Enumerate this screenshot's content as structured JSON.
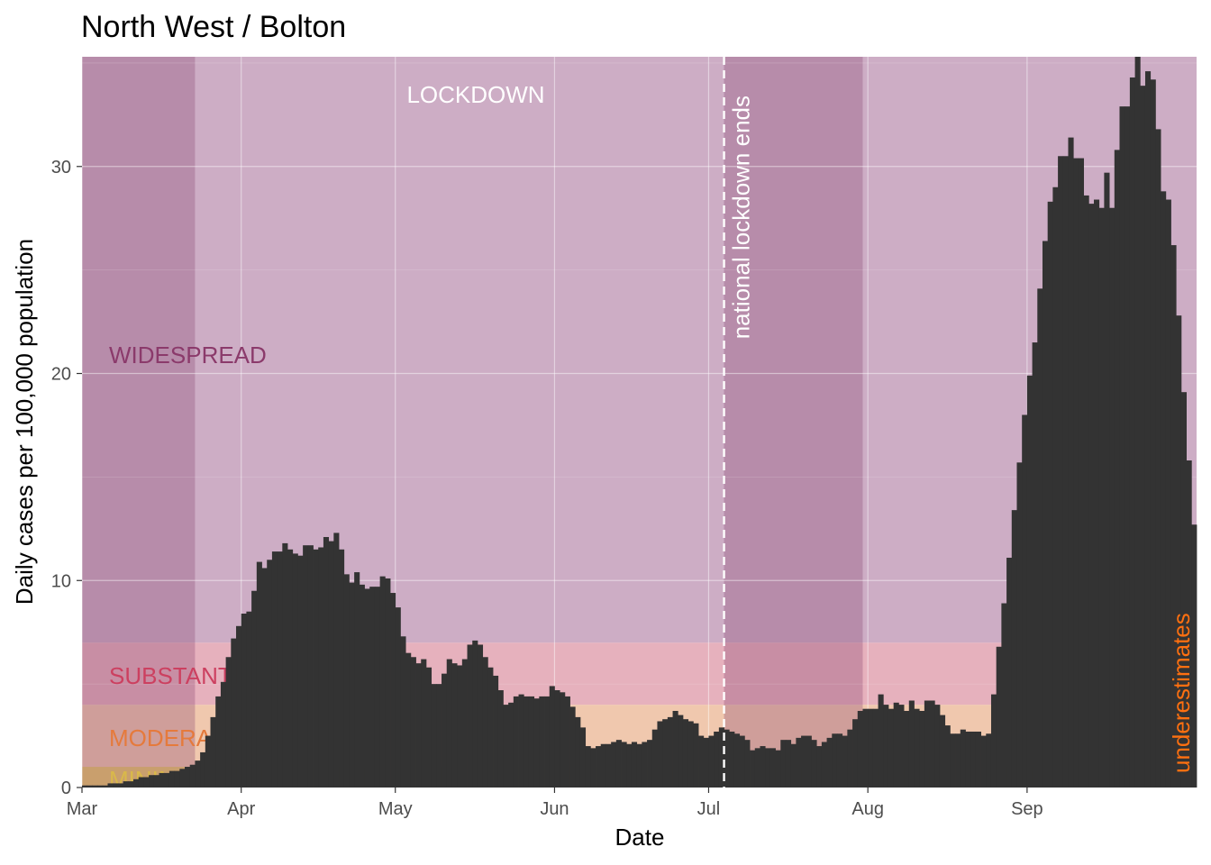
{
  "title": "North West / Bolton",
  "chart_data": {
    "type": "bar",
    "xlabel": "Date",
    "ylabel": "Daily cases per 100,000 population",
    "x_start": "2020-03-01",
    "x_end": "2020-09-28",
    "ylim": [
      0,
      35.3
    ],
    "x_ticks": [
      {
        "date": "2020-03-01",
        "label": "Mar"
      },
      {
        "date": "2020-04-01",
        "label": "Apr"
      },
      {
        "date": "2020-05-01",
        "label": "May"
      },
      {
        "date": "2020-06-01",
        "label": "Jun"
      },
      {
        "date": "2020-07-01",
        "label": "Jul"
      },
      {
        "date": "2020-08-01",
        "label": "Aug"
      },
      {
        "date": "2020-09-01",
        "label": "Sep"
      }
    ],
    "y_ticks": [
      0,
      10,
      20,
      30
    ],
    "grid": true,
    "zones": [
      {
        "name": "MINIMAL",
        "label": "MINIMAL",
        "ymin": 0,
        "ymax": 1,
        "color": "#e8c96a"
      },
      {
        "name": "MODERATE",
        "label": "MODERATE",
        "ymin": 1,
        "ymax": 4,
        "color": "#f0c8ae"
      },
      {
        "name": "SUBSTANTIAL",
        "label": "SUBSTANTIAL",
        "ymin": 4,
        "ymax": 7,
        "color": "#e6b1bd"
      },
      {
        "name": "WIDESPREAD",
        "label": "WIDESPREAD",
        "ymin": 7,
        "ymax": 35.3,
        "color": "#cdadc5"
      }
    ],
    "zone_label_colors": {
      "MINIMAL": "#d9b84a",
      "MODERATE": "#e57a3c",
      "SUBSTANTIAL": "#cc4060",
      "WIDESPREAD": "#8b3a6b"
    },
    "shaded_periods": [
      {
        "start": "2020-03-01",
        "end": "2020-03-23",
        "color": "#8b4a73"
      },
      {
        "start": "2020-07-04",
        "end": "2020-07-31",
        "color": "#8b4a73"
      }
    ],
    "lockdown_period": {
      "start": "2020-03-23",
      "end": "2020-07-04",
      "label": "LOCKDOWN"
    },
    "vline": {
      "date": "2020-07-04",
      "label": "national lockdown ends"
    },
    "underestimates_label": "underestimates",
    "underestimates_color": "#ff7010",
    "bar_color": "#333333",
    "values": [
      0.1,
      0.1,
      0.1,
      0.1,
      0.1,
      0.2,
      0.2,
      0.2,
      0.3,
      0.3,
      0.4,
      0.5,
      0.5,
      0.6,
      0.6,
      0.7,
      0.7,
      0.8,
      0.8,
      0.9,
      1.0,
      1.1,
      1.3,
      1.7,
      2.5,
      3.4,
      4.4,
      5.1,
      6.3,
      7.2,
      7.8,
      8.4,
      8.5,
      9.5,
      10.9,
      10.6,
      11.0,
      11.4,
      11.4,
      11.8,
      11.5,
      11.3,
      11.2,
      11.7,
      11.7,
      11.5,
      11.6,
      12.1,
      11.9,
      12.3,
      11.5,
      10.3,
      9.9,
      10.4,
      9.8,
      9.6,
      9.7,
      9.7,
      10.2,
      10.1,
      9.4,
      8.7,
      7.3,
      6.5,
      6.3,
      6.0,
      6.2,
      5.8,
      5.0,
      5.0,
      5.5,
      6.2,
      6.0,
      5.9,
      6.2,
      6.9,
      7.1,
      6.9,
      6.3,
      5.8,
      5.4,
      4.7,
      4.0,
      4.1,
      4.4,
      4.5,
      4.4,
      4.4,
      4.3,
      4.4,
      4.4,
      4.9,
      4.7,
      4.6,
      4.4,
      3.9,
      3.4,
      2.9,
      2.0,
      1.9,
      2.0,
      2.1,
      2.1,
      2.2,
      2.3,
      2.2,
      2.1,
      2.2,
      2.1,
      2.2,
      2.3,
      2.8,
      3.2,
      3.3,
      3.4,
      3.7,
      3.5,
      3.3,
      3.2,
      3.1,
      2.5,
      2.4,
      2.5,
      2.7,
      2.9,
      2.8,
      2.7,
      2.6,
      2.5,
      2.3,
      1.8,
      1.9,
      2.0,
      1.9,
      1.9,
      1.8,
      2.3,
      2.3,
      2.1,
      2.4,
      2.5,
      2.5,
      2.3,
      2.0,
      2.2,
      2.4,
      2.6,
      2.6,
      2.5,
      2.8,
      3.3,
      3.7,
      3.8,
      3.8,
      3.8,
      4.5,
      4.0,
      3.8,
      4.1,
      4.0,
      3.7,
      4.2,
      3.8,
      3.7,
      4.2,
      4.2,
      4.0,
      3.5,
      3.0,
      2.6,
      2.6,
      2.8,
      2.7,
      2.7,
      2.7,
      2.5,
      2.6,
      4.5,
      6.8,
      8.9,
      11.1,
      13.4,
      15.7,
      18.0,
      19.9,
      21.5,
      24.1,
      26.4,
      28.3,
      29.0,
      30.5,
      30.5,
      31.4,
      30.4,
      30.4,
      28.6,
      28.2,
      28.4,
      28.0,
      29.7,
      28.0,
      30.8,
      32.9,
      32.9,
      34.3,
      35.3,
      33.9,
      34.6,
      34.2,
      31.8,
      28.8,
      28.4,
      26.2,
      22.8,
      19.1,
      15.8,
      12.7
    ]
  }
}
